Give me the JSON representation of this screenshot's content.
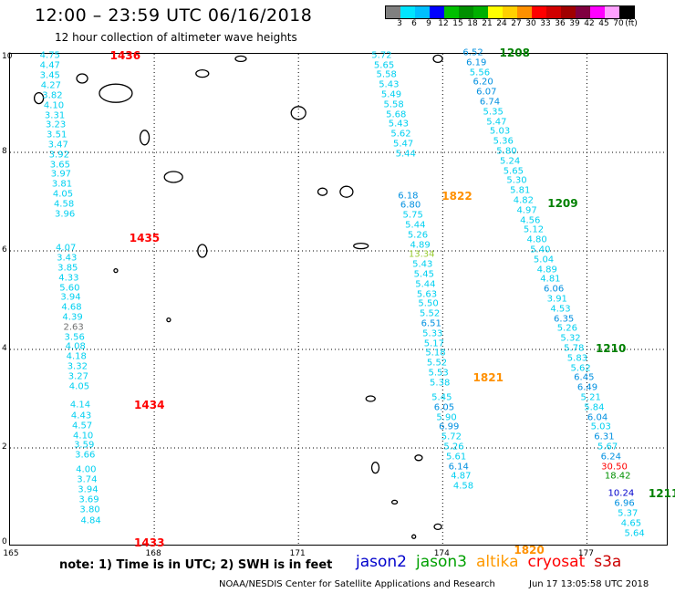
{
  "header": {
    "title": "12:00 – 23:59 UTC 06/16/2018",
    "subtitle": "12 hour collection of altimeter wave heights"
  },
  "colorbar": {
    "colors": [
      "#808080",
      "#00e5ff",
      "#00bfff",
      "#0000ff",
      "#00c000",
      "#009000",
      "#00b000",
      "#ffff00",
      "#ffd000",
      "#ff9000",
      "#ff0000",
      "#d00000",
      "#a00000",
      "#800040",
      "#ff00ff",
      "#ffa0ff",
      "#000000"
    ],
    "ticks": [
      "3",
      "6",
      "9",
      "12",
      "15",
      "18",
      "21",
      "24",
      "27",
      "30",
      "33",
      "36",
      "39",
      "42",
      "45",
      "70",
      "(ft)"
    ]
  },
  "axes": {
    "x_ticks": [
      "165",
      "168",
      "171",
      "174",
      "177"
    ],
    "y_ticks": [
      "0",
      "2",
      "4",
      "6",
      "8",
      "10"
    ]
  },
  "tracks": [
    {
      "label": "1436",
      "color": "#ff0000",
      "lon": 167.1,
      "lat": 9.95,
      "points": [
        [
          165.85,
          9.95,
          "4.75"
        ],
        [
          165.85,
          9.75,
          "4.47"
        ],
        [
          165.85,
          9.53,
          "3.45"
        ],
        [
          165.87,
          9.33,
          "4.27"
        ],
        [
          165.9,
          9.13,
          "3.82"
        ],
        [
          165.93,
          8.93,
          "4.10"
        ],
        [
          165.95,
          8.73,
          "3.31"
        ],
        [
          165.97,
          8.53,
          "3.23"
        ],
        [
          165.99,
          8.33,
          "3.51"
        ]
      ]
    },
    {
      "label": "1435",
      "color": "#ff0000",
      "lon": 167.5,
      "lat": 6.25,
      "points": [
        [
          166.02,
          8.13,
          "3.47"
        ],
        [
          166.04,
          7.93,
          "3.92"
        ],
        [
          166.06,
          7.73,
          "3.65"
        ],
        [
          166.08,
          7.53,
          "3.97"
        ],
        [
          166.1,
          7.33,
          "3.81"
        ],
        [
          166.12,
          7.13,
          "4.05"
        ],
        [
          166.14,
          6.93,
          "4.58"
        ],
        [
          166.16,
          6.73,
          "3.96"
        ],
        [
          166.18,
          6.03,
          "4.07"
        ],
        [
          166.2,
          5.83,
          "3.43"
        ],
        [
          166.22,
          5.63,
          "3.85"
        ],
        [
          166.24,
          5.43,
          "4.33"
        ],
        [
          166.26,
          5.23,
          "5.60"
        ],
        [
          166.28,
          5.03,
          "3.94"
        ],
        [
          166.3,
          4.83,
          "4.68"
        ],
        [
          166.32,
          4.63,
          "4.39"
        ],
        [
          166.34,
          4.43,
          "2.63"
        ],
        [
          166.36,
          4.23,
          "3.56"
        ]
      ]
    },
    {
      "label": "1434",
      "color": "#ff0000",
      "lon": 167.6,
      "lat": 2.85,
      "points": [
        [
          166.38,
          4.03,
          "4.08"
        ],
        [
          166.4,
          3.83,
          "4.18"
        ],
        [
          166.42,
          3.63,
          "3.32"
        ],
        [
          166.44,
          3.43,
          "3.27"
        ],
        [
          166.46,
          3.23,
          "4.05"
        ],
        [
          166.48,
          2.85,
          "4.14"
        ],
        [
          166.5,
          2.63,
          "4.43"
        ],
        [
          166.52,
          2.43,
          "4.57"
        ],
        [
          166.54,
          2.23,
          "4.10"
        ],
        [
          166.56,
          2.03,
          "3.59"
        ],
        [
          166.58,
          1.83,
          "3.66"
        ],
        [
          166.6,
          1.53,
          "4.00"
        ],
        [
          166.62,
          1.33,
          "3.74"
        ],
        [
          166.64,
          1.13,
          "3.94"
        ],
        [
          166.66,
          0.93,
          "3.69"
        ]
      ]
    },
    {
      "label": "1433",
      "color": "#ff0000",
      "lon": 167.6,
      "lat": 0.05,
      "points": [
        [
          166.68,
          0.73,
          "3.80"
        ],
        [
          166.7,
          0.5,
          "4.84"
        ]
      ]
    },
    {
      "label": "1822",
      "color": "#ff9000",
      "lon": 174.0,
      "lat": 7.1,
      "points": [
        [
          172.75,
          9.95,
          "5.72"
        ],
        [
          172.8,
          9.75,
          "5.65"
        ],
        [
          172.85,
          9.55,
          "5.58"
        ],
        [
          172.9,
          9.35,
          "5.43"
        ],
        [
          172.95,
          9.15,
          "5.49"
        ],
        [
          173.0,
          8.95,
          "5.58"
        ],
        [
          173.05,
          8.75,
          "5.68"
        ],
        [
          173.1,
          8.55,
          "5.43"
        ],
        [
          173.15,
          8.35,
          "5.62"
        ],
        [
          173.2,
          8.15,
          "5.47"
        ],
        [
          173.25,
          7.95,
          "5.44"
        ],
        [
          173.3,
          7.1,
          "6.18"
        ],
        [
          173.35,
          6.9,
          "6.80"
        ],
        [
          173.4,
          6.7,
          "5.75"
        ],
        [
          173.45,
          6.5,
          "5.44"
        ],
        [
          173.5,
          6.3,
          "5.26"
        ]
      ]
    },
    {
      "label": "1821",
      "color": "#ff9000",
      "lon": 174.65,
      "lat": 3.4,
      "points": [
        [
          173.55,
          6.1,
          "4.89"
        ],
        [
          173.58,
          5.9,
          "13.34"
        ],
        [
          173.6,
          5.7,
          "5.43"
        ],
        [
          173.63,
          5.5,
          "5.45"
        ],
        [
          173.66,
          5.3,
          "5.44"
        ],
        [
          173.69,
          5.1,
          "5.63"
        ],
        [
          173.72,
          4.9,
          "5.50"
        ],
        [
          173.75,
          4.7,
          "5.52"
        ],
        [
          173.78,
          4.5,
          "6.51"
        ],
        [
          173.81,
          4.3,
          "5.33"
        ],
        [
          173.84,
          4.1,
          "5.17"
        ],
        [
          173.87,
          3.9,
          "5.18"
        ],
        [
          173.9,
          3.7,
          "5.52"
        ],
        [
          173.93,
          3.5,
          "5.53"
        ],
        [
          173.96,
          3.3,
          "5.38"
        ]
      ]
    },
    {
      "label": "1820",
      "color": "#ff9000",
      "lon": 175.5,
      "lat": -0.1,
      "points": [
        [
          174.0,
          3.0,
          "5.45"
        ],
        [
          174.05,
          2.8,
          "6.05"
        ],
        [
          174.1,
          2.6,
          "5.90"
        ],
        [
          174.15,
          2.4,
          "6.99"
        ],
        [
          174.2,
          2.2,
          "5.72"
        ],
        [
          174.25,
          2.0,
          "5.26"
        ],
        [
          174.3,
          1.8,
          "5.61"
        ],
        [
          174.35,
          1.6,
          "6.14"
        ],
        [
          174.4,
          1.4,
          "4.87"
        ],
        [
          174.45,
          1.2,
          "4.58"
        ]
      ]
    },
    {
      "label": "1208",
      "color": "#008000",
      "lon": 175.2,
      "lat": 10.0,
      "points": [
        [
          174.65,
          10.0,
          "6.52"
        ],
        [
          174.72,
          9.8,
          "6.19"
        ],
        [
          174.79,
          9.6,
          "5.56"
        ],
        [
          174.86,
          9.4,
          "6.20"
        ],
        [
          174.93,
          9.2,
          "6.07"
        ],
        [
          175.0,
          9.0,
          "6.74"
        ],
        [
          175.07,
          8.8,
          "5.35"
        ],
        [
          175.14,
          8.6,
          "5.47"
        ],
        [
          175.21,
          8.4,
          "5.03"
        ],
        [
          175.28,
          8.2,
          "5.36"
        ],
        [
          175.35,
          8.0,
          "5.80"
        ],
        [
          175.42,
          7.8,
          "5.24"
        ],
        [
          175.49,
          7.6,
          "5.65"
        ],
        [
          175.56,
          7.4,
          "5.30"
        ],
        [
          175.63,
          7.2,
          "5.81"
        ]
      ]
    },
    {
      "label": "1209",
      "color": "#008000",
      "lon": 176.2,
      "lat": 6.95,
      "points": [
        [
          175.7,
          7.0,
          "4.82"
        ],
        [
          175.77,
          6.8,
          "4.97"
        ],
        [
          175.84,
          6.6,
          "4.56"
        ],
        [
          175.91,
          6.4,
          "5.12"
        ],
        [
          175.98,
          6.2,
          "4.80"
        ],
        [
          176.05,
          6.0,
          "5.40"
        ],
        [
          176.12,
          5.8,
          "5.04"
        ],
        [
          176.19,
          5.6,
          "4.89"
        ],
        [
          176.26,
          5.4,
          "4.81"
        ],
        [
          176.33,
          5.2,
          "6.06"
        ],
        [
          176.4,
          5.0,
          "3.91"
        ],
        [
          176.47,
          4.8,
          "4.53"
        ],
        [
          176.54,
          4.6,
          "6.35"
        ],
        [
          176.61,
          4.4,
          "5.26"
        ],
        [
          176.68,
          4.2,
          "5.32"
        ],
        [
          176.75,
          4.0,
          "5.78"
        ]
      ]
    },
    {
      "label": "1210",
      "color": "#008000",
      "lon": 177.2,
      "lat": 4.0,
      "points": [
        [
          176.82,
          3.8,
          "5.83"
        ],
        [
          176.89,
          3.6,
          "5.62"
        ],
        [
          176.96,
          3.4,
          "6.45"
        ],
        [
          177.03,
          3.2,
          "6.49"
        ],
        [
          177.1,
          3.0,
          "5.21"
        ],
        [
          177.17,
          2.8,
          "5.84"
        ],
        [
          177.24,
          2.6,
          "6.04"
        ],
        [
          177.31,
          2.4,
          "5.03"
        ],
        [
          177.38,
          2.2,
          "6.31"
        ],
        [
          177.45,
          2.0,
          "5.67"
        ],
        [
          177.52,
          1.8,
          "6.24"
        ],
        [
          177.59,
          1.6,
          "30.50"
        ],
        [
          177.66,
          1.4,
          "18.42"
        ]
      ]
    },
    {
      "label": "1211",
      "color": "#008000",
      "lon": 178.3,
      "lat": 1.05,
      "points": [
        [
          177.73,
          1.05,
          "10.24"
        ],
        [
          177.8,
          0.85,
          "6.96"
        ],
        [
          177.87,
          0.65,
          "5.37"
        ],
        [
          177.94,
          0.45,
          "4.65"
        ],
        [
          178.01,
          0.25,
          "5.64"
        ]
      ]
    }
  ],
  "legend_note": "note:  1) Time is in UTC;  2) SWH is in feet",
  "legend_missions": [
    {
      "name": "jason2",
      "color": "#0000cc"
    },
    {
      "name": "jason3",
      "color": "#00a000"
    },
    {
      "name": "altika",
      "color": "#ff9900"
    },
    {
      "name": "cryosat",
      "color": "#ff0000"
    },
    {
      "name": "s3a",
      "color": "#cc0000"
    }
  ],
  "footer": {
    "credit": "NOAA/NESDIS Center for Satellite Applications and Research",
    "timestamp": "Jun 17 13:05:58 UTC 2018"
  }
}
